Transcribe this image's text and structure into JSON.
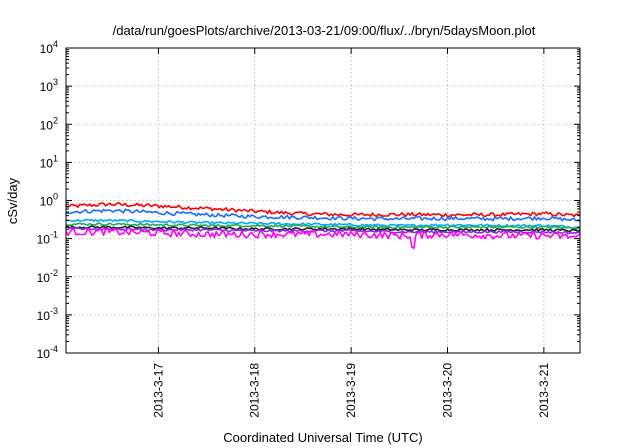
{
  "chart_data": {
    "type": "line",
    "title": "/data/run/goesPlots/archive/2013-03-21/09:00/flux/../bryn/5daysMoon.plot",
    "xlabel": "Coordinated Universal Time (UTC)",
    "ylabel": "cSv/day",
    "y_scale": "log",
    "ylim": [
      0.0001,
      10000
    ],
    "y_ticks": [
      {
        "base": "10",
        "exp": "4",
        "value": 10000
      },
      {
        "base": "10",
        "exp": "3",
        "value": 1000
      },
      {
        "base": "10",
        "exp": "2",
        "value": 100
      },
      {
        "base": "10",
        "exp": "1",
        "value": 10
      },
      {
        "base": "10",
        "exp": "0",
        "value": 1
      },
      {
        "base": "10",
        "exp": "-1",
        "value": 0.1
      },
      {
        "base": "10",
        "exp": "-2",
        "value": 0.01
      },
      {
        "base": "10",
        "exp": "-3",
        "value": 0.001
      },
      {
        "base": "10",
        "exp": "-4",
        "value": 0.0001
      }
    ],
    "xlim": [
      "2013-03-16 01:00",
      "2013-03-21 09:00"
    ],
    "x_ticks": [
      {
        "label": "2013-3-17",
        "date": "2013-03-17 00:00"
      },
      {
        "label": "2013-3-18",
        "date": "2013-03-18 00:00"
      },
      {
        "label": "2013-3-19",
        "date": "2013-03-19 00:00"
      },
      {
        "label": "2013-3-20",
        "date": "2013-03-20 00:00"
      },
      {
        "label": "2013-3-21",
        "date": "2013-03-21 00:00"
      }
    ],
    "grid": true,
    "legend": "none",
    "series": [
      {
        "color": "#ff0000",
        "x": [
          "2013-03-16 01:00",
          "2013-03-16 12:00",
          "2013-03-17 00:00",
          "2013-03-17 12:00",
          "2013-03-18 00:00",
          "2013-03-18 12:00",
          "2013-03-19 00:00",
          "2013-03-19 12:00",
          "2013-03-20 00:00",
          "2013-03-20 12:00",
          "2013-03-21 00:00",
          "2013-03-21 09:00"
        ],
        "y": [
          0.7,
          0.8,
          0.72,
          0.62,
          0.52,
          0.45,
          0.42,
          0.43,
          0.42,
          0.42,
          0.45,
          0.4
        ]
      },
      {
        "color": "#1a6cff",
        "x": [
          "2013-03-16 01:00",
          "2013-03-16 12:00",
          "2013-03-17 00:00",
          "2013-03-17 12:00",
          "2013-03-18 00:00",
          "2013-03-18 12:00",
          "2013-03-19 00:00",
          "2013-03-19 12:00",
          "2013-03-20 00:00",
          "2013-03-20 12:00",
          "2013-03-21 00:00",
          "2013-03-21 09:00"
        ],
        "y": [
          0.5,
          0.55,
          0.48,
          0.42,
          0.38,
          0.36,
          0.34,
          0.33,
          0.34,
          0.33,
          0.35,
          0.3
        ]
      },
      {
        "color": "#00aaff",
        "x": [
          "2013-03-16 01:00",
          "2013-03-16 12:00",
          "2013-03-17 00:00",
          "2013-03-17 12:00",
          "2013-03-18 00:00",
          "2013-03-18 12:00",
          "2013-03-19 00:00",
          "2013-03-19 12:00",
          "2013-03-20 00:00",
          "2013-03-20 12:00",
          "2013-03-21 00:00",
          "2013-03-21 09:00"
        ],
        "y": [
          0.3,
          0.3,
          0.28,
          0.26,
          0.25,
          0.24,
          0.23,
          0.22,
          0.23,
          0.22,
          0.22,
          0.2
        ]
      },
      {
        "color": "#22aa55",
        "x": [
          "2013-03-16 01:00",
          "2013-03-16 12:00",
          "2013-03-17 00:00",
          "2013-03-17 12:00",
          "2013-03-18 00:00",
          "2013-03-18 12:00",
          "2013-03-19 00:00",
          "2013-03-19 12:00",
          "2013-03-20 00:00",
          "2013-03-20 12:00",
          "2013-03-21 00:00",
          "2013-03-21 09:00"
        ],
        "y": [
          0.24,
          0.24,
          0.23,
          0.22,
          0.22,
          0.21,
          0.2,
          0.2,
          0.2,
          0.2,
          0.2,
          0.19
        ]
      },
      {
        "color": "#202020",
        "x": [
          "2013-03-16 01:00",
          "2013-03-16 12:00",
          "2013-03-17 00:00",
          "2013-03-17 12:00",
          "2013-03-18 00:00",
          "2013-03-18 12:00",
          "2013-03-19 00:00",
          "2013-03-19 12:00",
          "2013-03-20 00:00",
          "2013-03-20 12:00",
          "2013-03-21 00:00",
          "2013-03-21 09:00"
        ],
        "y": [
          0.2,
          0.2,
          0.19,
          0.19,
          0.18,
          0.18,
          0.18,
          0.17,
          0.17,
          0.17,
          0.17,
          0.16
        ]
      },
      {
        "color": "#8a2be2",
        "x": [
          "2013-03-16 01:00",
          "2013-03-16 12:00",
          "2013-03-17 00:00",
          "2013-03-17 12:00",
          "2013-03-18 00:00",
          "2013-03-18 12:00",
          "2013-03-19 00:00",
          "2013-03-19 12:00",
          "2013-03-20 00:00",
          "2013-03-20 12:00",
          "2013-03-21 00:00",
          "2013-03-21 09:00"
        ],
        "y": [
          0.18,
          0.18,
          0.17,
          0.17,
          0.16,
          0.16,
          0.16,
          0.15,
          0.15,
          0.15,
          0.15,
          0.14
        ]
      },
      {
        "color": "#ff00ff",
        "x": [
          "2013-03-16 01:00",
          "2013-03-16 12:00",
          "2013-03-17 00:00",
          "2013-03-17 12:00",
          "2013-03-18 00:00",
          "2013-03-18 12:00",
          "2013-03-19 00:00",
          "2013-03-19 12:00",
          "2013-03-20 00:00",
          "2013-03-20 12:00",
          "2013-03-21 00:00",
          "2013-03-21 09:00"
        ],
        "y": [
          0.15,
          0.15,
          0.14,
          0.13,
          0.13,
          0.13,
          0.13,
          0.12,
          0.13,
          0.12,
          0.12,
          0.11
        ]
      }
    ]
  }
}
